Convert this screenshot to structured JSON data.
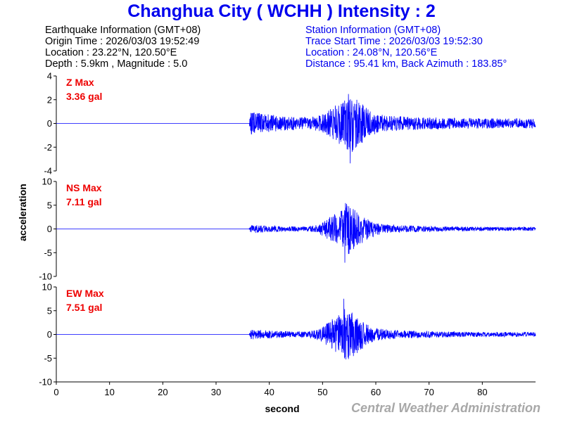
{
  "title": "Changhua City ( WCHH ) Intensity : 2",
  "earthquake": {
    "header": "Earthquake Information (GMT+08)",
    "origin_time": "Origin Time : 2026/03/03 19:52:49",
    "location": "Location : 23.22°N, 120.50°E",
    "depth_magnitude": "Depth : 5.9km , Magnitude : 5.0"
  },
  "station": {
    "header": "Station Information (GMT+08)",
    "trace_start": "Trace Start Time : 2026/03/03 19:52:30",
    "location": "Location : 24.08°N, 120.56°E",
    "distance": "Distance : 95.41 km, Back Azimuth : 183.85°"
  },
  "credit": "Central Weather Administration",
  "colors": {
    "title": "#0000ee",
    "trace": "#0000ff",
    "peak_label": "#ee0000",
    "credit": "#a8a8a8"
  },
  "chart_data": {
    "type": "line",
    "xlabel": "second",
    "ylabel": "acceleration",
    "xlim": [
      0,
      90
    ],
    "xticks": [
      0,
      10,
      20,
      30,
      40,
      50,
      60,
      70,
      80
    ],
    "series": [
      {
        "name": "Z",
        "label": "Z Max",
        "peak": "3.36 gal",
        "ylim": [
          -4,
          4
        ],
        "yticks": [
          4,
          2,
          0,
          -2,
          -4
        ],
        "onset": 36.2,
        "p_amp": 1.0,
        "s_amp": 1.6,
        "s_center": 54.5,
        "peak_time": 55.2,
        "peak_value": -3.36
      },
      {
        "name": "NS",
        "label": "NS Max",
        "peak": "7.11 gal",
        "ylim": [
          -10,
          10
        ],
        "yticks": [
          10,
          5,
          0,
          -5,
          -10
        ],
        "onset": 36.2,
        "p_amp": 0.9,
        "s_amp": 3.8,
        "s_center": 54.2,
        "peak_time": 54.2,
        "peak_value": -7.11
      },
      {
        "name": "EW",
        "label": "EW Max",
        "peak": "7.51 gal",
        "ylim": [
          -10,
          10
        ],
        "yticks": [
          10,
          5,
          0,
          -5,
          -10
        ],
        "onset": 36.2,
        "p_amp": 1.1,
        "s_amp": 3.9,
        "s_center": 54.0,
        "peak_time": 54.0,
        "peak_value": 7.51
      }
    ]
  }
}
